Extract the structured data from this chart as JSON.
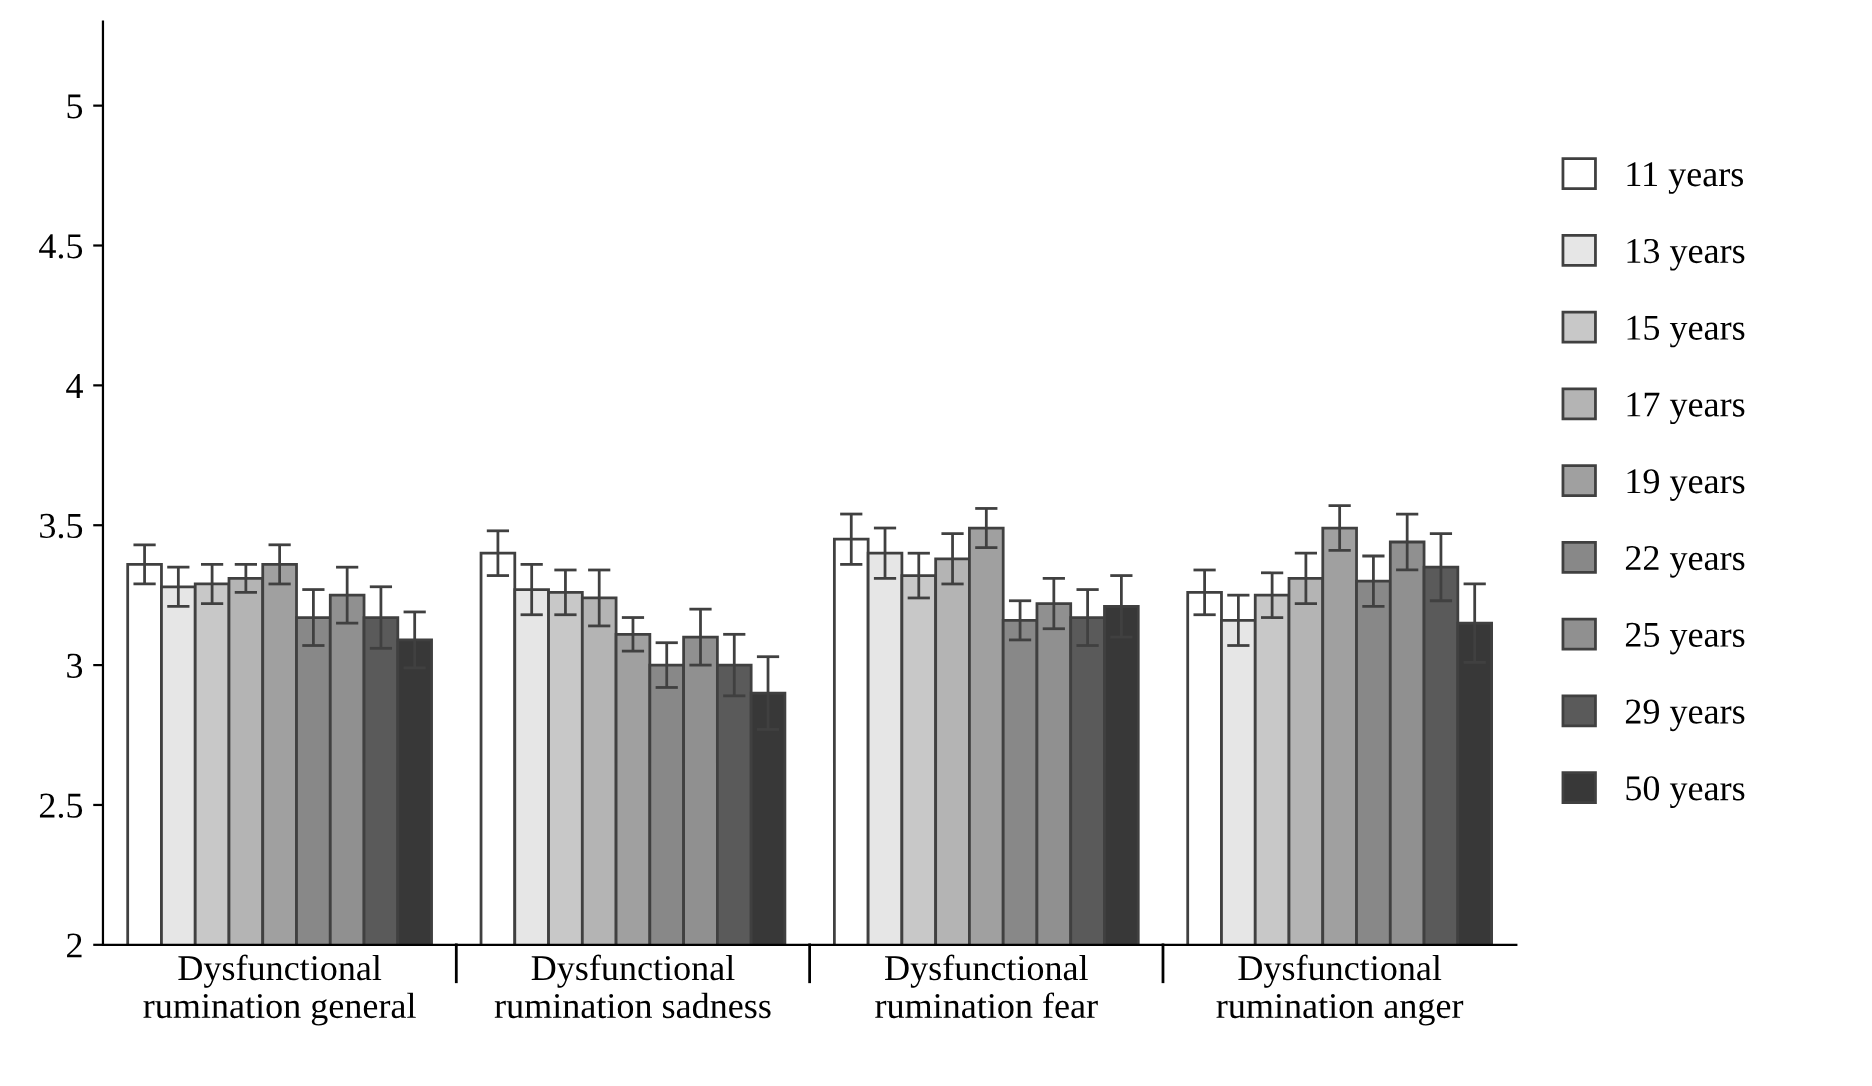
{
  "chart_data": {
    "type": "bar",
    "categories": [
      "Dysfunctional\nrumination general",
      "Dysfunctional\nrumination sadness",
      "Dysfunctional\nrumination fear",
      "Dysfunctional\nrumination anger"
    ],
    "series": [
      {
        "name": "11 years",
        "color": "#ffffff",
        "values": [
          3.36,
          3.4,
          3.45,
          3.26
        ],
        "errors": [
          0.07,
          0.08,
          0.09,
          0.08
        ]
      },
      {
        "name": "13 years",
        "color": "#e6e6e6",
        "values": [
          3.28,
          3.27,
          3.4,
          3.16
        ],
        "errors": [
          0.07,
          0.09,
          0.09,
          0.09
        ]
      },
      {
        "name": "15 years",
        "color": "#c8c8c8",
        "values": [
          3.29,
          3.26,
          3.32,
          3.25
        ],
        "errors": [
          0.07,
          0.08,
          0.08,
          0.08
        ]
      },
      {
        "name": "17 years",
        "color": "#b4b4b4",
        "values": [
          3.31,
          3.24,
          3.38,
          3.31
        ],
        "errors": [
          0.05,
          0.1,
          0.09,
          0.09
        ]
      },
      {
        "name": "19 years",
        "color": "#a0a0a0",
        "values": [
          3.36,
          3.11,
          3.49,
          3.49
        ],
        "errors": [
          0.07,
          0.06,
          0.07,
          0.08
        ]
      },
      {
        "name": "22 years",
        "color": "#888888",
        "values": [
          3.17,
          3.0,
          3.16,
          3.3
        ],
        "errors": [
          0.1,
          0.08,
          0.07,
          0.09
        ]
      },
      {
        "name": "25 years",
        "color": "#909090",
        "values": [
          3.25,
          3.1,
          3.22,
          3.44
        ],
        "errors": [
          0.1,
          0.1,
          0.09,
          0.1
        ]
      },
      {
        "name": "29 years",
        "color": "#5a5a5a",
        "values": [
          3.17,
          3.0,
          3.17,
          3.35
        ],
        "errors": [
          0.11,
          0.11,
          0.1,
          0.12
        ]
      },
      {
        "name": "50 years",
        "color": "#383838",
        "values": [
          3.09,
          2.9,
          3.21,
          3.15
        ],
        "errors": [
          0.1,
          0.13,
          0.11,
          0.14
        ]
      }
    ],
    "ylim": [
      2,
      5.3
    ],
    "yticks": [
      2,
      2.5,
      3,
      3.5,
      4,
      4.5,
      5
    ],
    "grid": false,
    "legend": "right"
  }
}
